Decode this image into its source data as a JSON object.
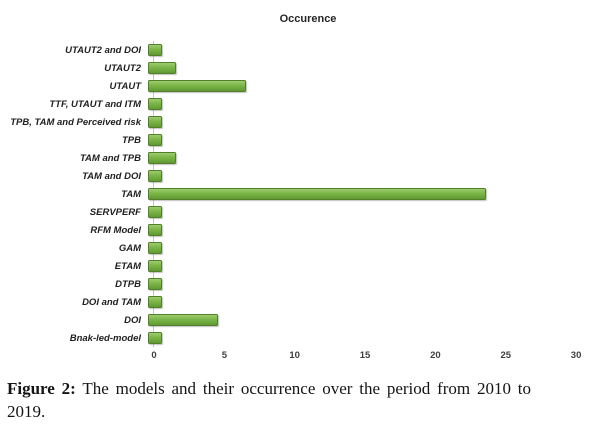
{
  "chart_data": {
    "type": "bar",
    "orientation": "horizontal",
    "title": "Occurence",
    "categories": [
      "UTAUT2 and DOI",
      "UTAUT2",
      "UTAUT",
      "TTF, UTAUT and ITM",
      "TPB, TAM and Perceived risk",
      "TPB",
      "TAM and TPB",
      "TAM and DOI",
      "TAM",
      "SERVPERF",
      "RFM Model",
      "GAM",
      "ETAM",
      "DTPB",
      "DOI and TAM",
      "DOI",
      "Bnak-led-model"
    ],
    "values": [
      1,
      2,
      7,
      1,
      1,
      1,
      2,
      1,
      24,
      1,
      1,
      1,
      1,
      1,
      1,
      5,
      1
    ],
    "xlabel": "",
    "ylabel": "",
    "x_ticks": [
      0,
      5,
      10,
      15,
      20,
      25,
      30
    ],
    "xlim": [
      0,
      30
    ],
    "grid": false,
    "legend": "none",
    "bar_color": "#7ab648",
    "bar_border_color": "#527f2a",
    "axis_line_color": "#c3c3cd"
  },
  "caption": {
    "label": "Figure 2:",
    "text": "The models and their occurrence over the period from 2010 to 2019."
  }
}
